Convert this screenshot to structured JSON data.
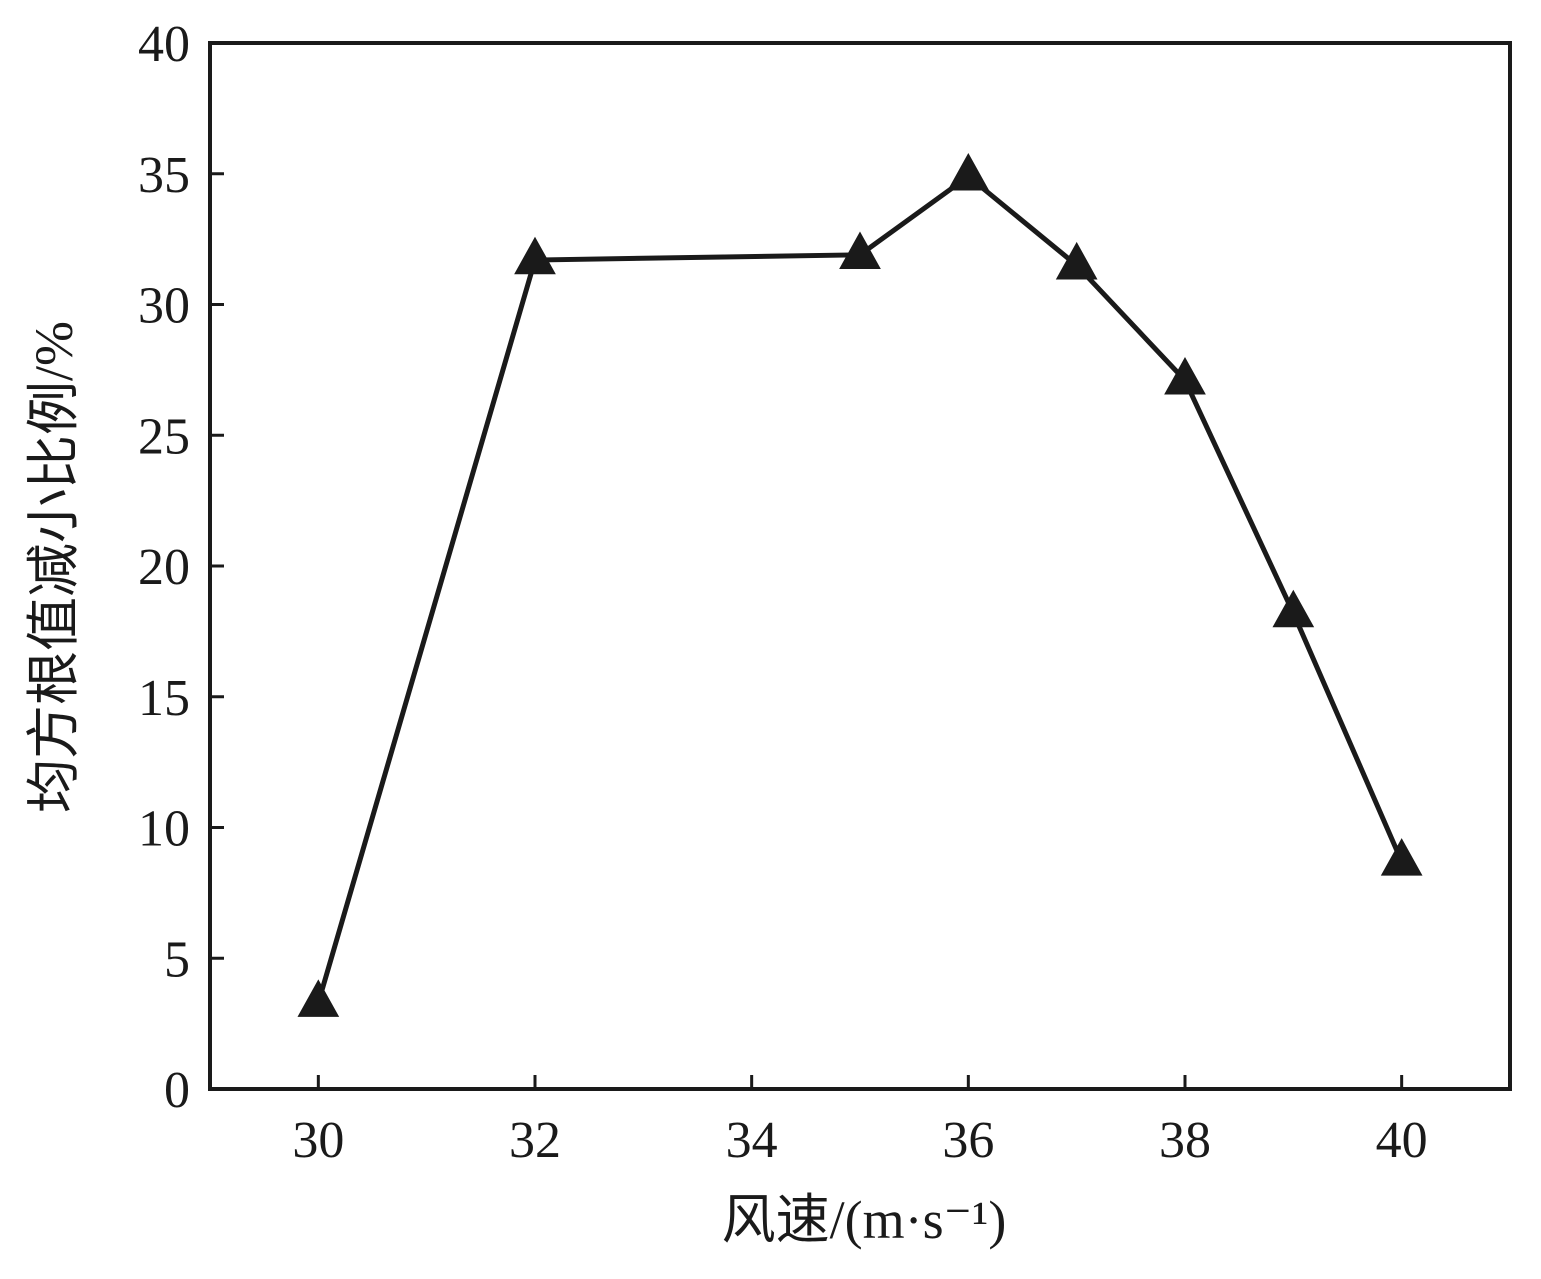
{
  "chart_data": {
    "type": "line",
    "xlabel": "风速/(m·s⁻¹)",
    "ylabel": "均方根值减小比例/%",
    "xlim": [
      29,
      41
    ],
    "ylim": [
      0,
      40
    ],
    "xticks": [
      30,
      32,
      34,
      36,
      38,
      40
    ],
    "yticks": [
      0,
      5,
      10,
      15,
      20,
      25,
      30,
      35,
      40
    ],
    "grid": false,
    "legend": "none",
    "marker": "filled-triangle",
    "line_color": "#1a1a1a",
    "series": [
      {
        "x": [
          30,
          32,
          35,
          36,
          37,
          38,
          39,
          40
        ],
        "values": [
          3.3,
          31.7,
          31.9,
          34.9,
          31.5,
          27.1,
          18.2,
          8.7
        ]
      }
    ]
  }
}
